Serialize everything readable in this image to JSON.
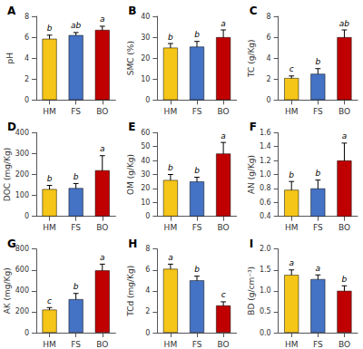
{
  "chart_data": [
    {
      "type": "bar",
      "title": "A",
      "ylabel": "pH",
      "categories": [
        "HM",
        "FS",
        "BO"
      ],
      "values": [
        5.85,
        6.2,
        6.7
      ],
      "errors": [
        0.35,
        0.25,
        0.35
      ],
      "annotations": [
        "b",
        "ab",
        "a"
      ],
      "colors": [
        "#F5C518",
        "#4472C4",
        "#C00000"
      ],
      "ylim": [
        0,
        8
      ],
      "yticks": [
        0,
        2,
        4,
        6,
        8
      ],
      "grid": false
    },
    {
      "type": "bar",
      "title": "B",
      "ylabel": "SMC (%)",
      "categories": [
        "HM",
        "FS",
        "BO"
      ],
      "values": [
        25.0,
        25.5,
        30.0
      ],
      "errors": [
        2.0,
        2.5,
        3.5
      ],
      "annotations": [
        "b",
        "b",
        "a"
      ],
      "colors": [
        "#F5C518",
        "#4472C4",
        "#C00000"
      ],
      "ylim": [
        0,
        40
      ],
      "yticks": [
        0,
        10,
        20,
        30,
        40
      ],
      "grid": false
    },
    {
      "type": "bar",
      "title": "C",
      "ylabel": "TC (g/Kg)",
      "categories": [
        "HM",
        "FS",
        "BO"
      ],
      "values": [
        2.1,
        2.5,
        6.0
      ],
      "errors": [
        0.2,
        0.5,
        0.7
      ],
      "annotations": [
        "c",
        "b",
        "ab"
      ],
      "colors": [
        "#F5C518",
        "#4472C4",
        "#C00000"
      ],
      "ylim": [
        0,
        8
      ],
      "yticks": [
        0,
        2,
        4,
        6,
        8
      ],
      "grid": false
    },
    {
      "type": "bar",
      "title": "D",
      "ylabel": "DOC (mg/Kg)",
      "categories": [
        "HM",
        "FS",
        "BO"
      ],
      "values": [
        130,
        135,
        220
      ],
      "errors": [
        18,
        22,
        70
      ],
      "annotations": [
        "b",
        "b",
        "a"
      ],
      "colors": [
        "#F5C518",
        "#4472C4",
        "#C00000"
      ],
      "ylim": [
        0,
        400
      ],
      "yticks": [
        0,
        100,
        200,
        300,
        400
      ],
      "grid": false
    },
    {
      "type": "bar",
      "title": "E",
      "ylabel": "OM (g/Kg)",
      "categories": [
        "HM",
        "FS",
        "BO"
      ],
      "values": [
        26,
        25,
        45
      ],
      "errors": [
        4,
        3,
        8
      ],
      "annotations": [
        "b",
        "b",
        "a"
      ],
      "colors": [
        "#F5C518",
        "#4472C4",
        "#C00000"
      ],
      "ylim": [
        0,
        60
      ],
      "yticks": [
        0,
        10,
        20,
        30,
        40,
        50,
        60
      ],
      "grid": false
    },
    {
      "type": "bar",
      "title": "F",
      "ylabel": "AN (g/Kg)",
      "categories": [
        "HM",
        "FS",
        "BO"
      ],
      "values": [
        0.78,
        0.8,
        1.2
      ],
      "errors": [
        0.12,
        0.12,
        0.25
      ],
      "annotations": [
        "b",
        "b",
        "a"
      ],
      "colors": [
        "#F5C518",
        "#4472C4",
        "#C00000"
      ],
      "ylim": [
        0.4,
        1.6
      ],
      "yticks": [
        0.4,
        0.6,
        0.8,
        {
          "value": 1.0,
          "label": "1.0"
        },
        1.2,
        1.4,
        1.6
      ],
      "grid": false
    },
    {
      "type": "bar",
      "title": "G",
      "ylabel": "AK (mg/Kg)",
      "categories": [
        "HM",
        "FS",
        "BO"
      ],
      "values": [
        220,
        320,
        595
      ],
      "errors": [
        20,
        55,
        60
      ],
      "annotations": [
        "c",
        "b",
        "a"
      ],
      "colors": [
        "#F5C518",
        "#4472C4",
        "#C00000"
      ],
      "ylim": [
        0,
        800
      ],
      "yticks": [
        0,
        200,
        400,
        600,
        800
      ],
      "grid": false
    },
    {
      "type": "bar",
      "title": "H",
      "ylabel": "TCd (mg/Kg)",
      "categories": [
        "HM",
        "FS",
        "BO"
      ],
      "values": [
        6.1,
        5.0,
        2.6
      ],
      "errors": [
        0.45,
        0.4,
        0.35
      ],
      "annotations": [
        "a",
        "b",
        "c"
      ],
      "colors": [
        "#F5C518",
        "#4472C4",
        "#C00000"
      ],
      "ylim": [
        0,
        8
      ],
      "yticks": [
        0,
        2,
        4,
        6,
        8
      ],
      "grid": false
    },
    {
      "type": "bar",
      "title": "I",
      "ylabel": "BD (g/cm⁻³)",
      "categories": [
        "HM",
        "FS",
        "BO"
      ],
      "values": [
        1.38,
        1.28,
        1.0
      ],
      "errors": [
        0.12,
        0.1,
        0.12
      ],
      "annotations": [
        "a",
        "a",
        "b"
      ],
      "colors": [
        "#F5C518",
        "#4472C4",
        "#C00000"
      ],
      "ylim": [
        0,
        2
      ],
      "yticks": [
        {
          "value": 0,
          "label": "0.0"
        },
        0.5,
        {
          "value": 1.0,
          "label": "1.0"
        },
        1.5,
        {
          "value": 2.0,
          "label": "2.0"
        }
      ],
      "grid": false
    }
  ]
}
